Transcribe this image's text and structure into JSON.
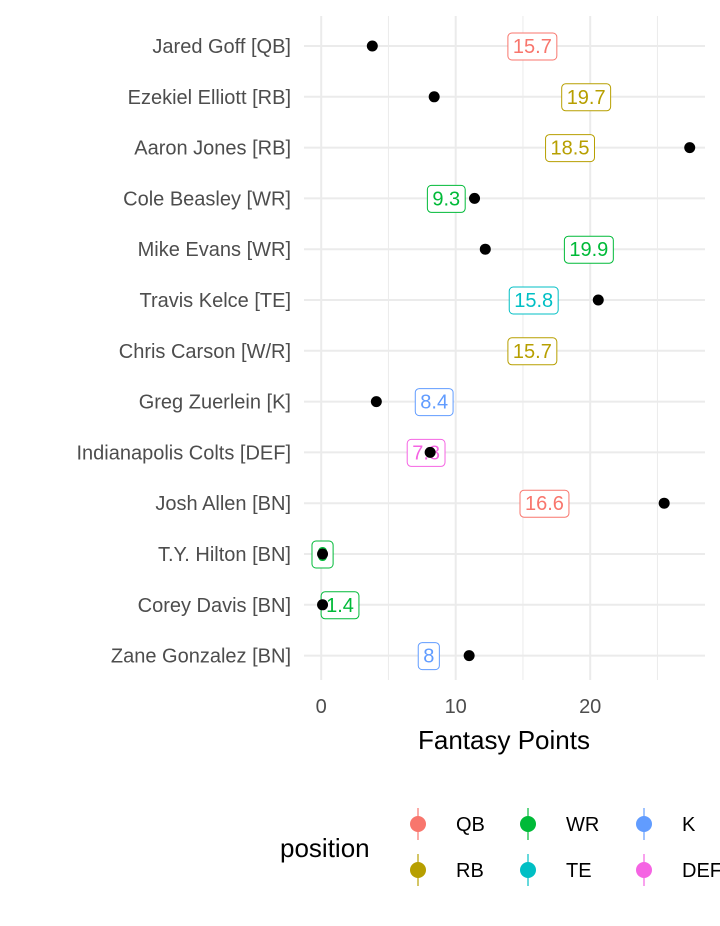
{
  "chart_data": {
    "type": "scatter",
    "xlabel": "Fantasy Points",
    "ylabel": "",
    "xlim": [
      -1.2,
      28.5
    ],
    "x_ticks": [
      0,
      10,
      20
    ],
    "x_tick_labels": [
      "0",
      "10",
      "20"
    ],
    "grid": true,
    "legend": {
      "title": "position",
      "placement": "bottom",
      "entries": [
        {
          "key": "QB",
          "label": "QB",
          "color": "#F8766D"
        },
        {
          "key": "RB",
          "label": "RB",
          "color": "#B79F00"
        },
        {
          "key": "WR",
          "label": "WR",
          "color": "#00BA38"
        },
        {
          "key": "TE",
          "label": "TE",
          "color": "#00BFC4"
        },
        {
          "key": "K",
          "label": "K",
          "color": "#619CFF"
        },
        {
          "key": "DEF",
          "label": "DEF",
          "color": "#F564E3"
        }
      ]
    },
    "players": [
      {
        "name": "Jared Goff [QB]",
        "position": "QB",
        "actual": 3.8,
        "projection": 15.7,
        "projection_label": "15.7"
      },
      {
        "name": "Ezekiel Elliott [RB]",
        "position": "RB",
        "actual": 8.4,
        "projection": 19.7,
        "projection_label": "19.7"
      },
      {
        "name": "Aaron Jones [RB]",
        "position": "RB",
        "actual": 27.4,
        "projection": 18.5,
        "projection_label": "18.5"
      },
      {
        "name": "Cole Beasley [WR]",
        "position": "WR",
        "actual": 11.4,
        "projection": 9.3,
        "projection_label": "9.3"
      },
      {
        "name": "Mike Evans [WR]",
        "position": "WR",
        "actual": 12.2,
        "projection": 19.9,
        "projection_label": "19.9"
      },
      {
        "name": "Travis Kelce [TE]",
        "position": "TE",
        "actual": 20.6,
        "projection": 15.8,
        "projection_label": "15.8"
      },
      {
        "name": "Chris Carson [W/R]",
        "position": "RB",
        "actual": null,
        "projection": 15.7,
        "projection_label": "15.7"
      },
      {
        "name": "Greg Zuerlein [K]",
        "position": "K",
        "actual": 4.1,
        "projection": 8.4,
        "projection_label": "8.4"
      },
      {
        "name": "Indianapolis Colts [DEF]",
        "position": "DEF",
        "actual": 8.1,
        "projection": 7.8,
        "projection_label": "7.8"
      },
      {
        "name": "Josh Allen [BN]",
        "position": "QB",
        "actual": 25.5,
        "projection": 16.6,
        "projection_label": "16.6"
      },
      {
        "name": "T.Y. Hilton [BN]",
        "position": "WR",
        "actual": 0.1,
        "projection": 0.1,
        "projection_label": "0"
      },
      {
        "name": "Corey Davis [BN]",
        "position": "WR",
        "actual": 0.1,
        "projection": 1.4,
        "projection_label": "1.4"
      },
      {
        "name": "Zane Gonzalez [BN]",
        "position": "K",
        "actual": 11.0,
        "projection": 8.0,
        "projection_label": "8"
      }
    ]
  }
}
